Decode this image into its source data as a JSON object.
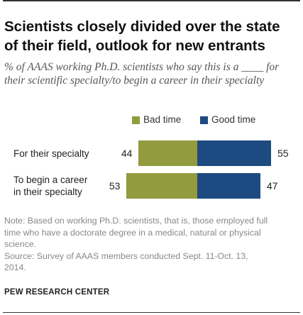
{
  "title": "Scientists closely divided over the state of their field, outlook for new entrants",
  "subtitle": "% of AAAS working Ph.D. scientists who say this is a ____ for their scientific specialty/to begin a career in their specialty",
  "note_lines": [
    "Note: Based on working Ph.D. scientists, that is, those employed full",
    "time who have a doctorate degree in a medical, natural or physical",
    "science.",
    "Source: Survey of AAAS members conducted Sept. 11-Oct. 13,",
    "2014."
  ],
  "source": "PEW RESEARCH CENTER",
  "colors": {
    "bad": "#929b3d",
    "good": "#1e4a82"
  },
  "chart_data": {
    "type": "bar",
    "orientation": "horizontal-diverging",
    "categories": [
      "For their specialty",
      "To begin a career in their specialty"
    ],
    "category_lines": [
      [
        "For their specialty"
      ],
      [
        "To begin a career",
        "in their specialty"
      ]
    ],
    "series": [
      {
        "name": "Bad time",
        "values": [
          44,
          53
        ],
        "color": "#929b3d"
      },
      {
        "name": "Good time",
        "values": [
          55,
          47
        ],
        "color": "#1e4a82"
      }
    ],
    "legend_position": "top",
    "grid": false
  }
}
